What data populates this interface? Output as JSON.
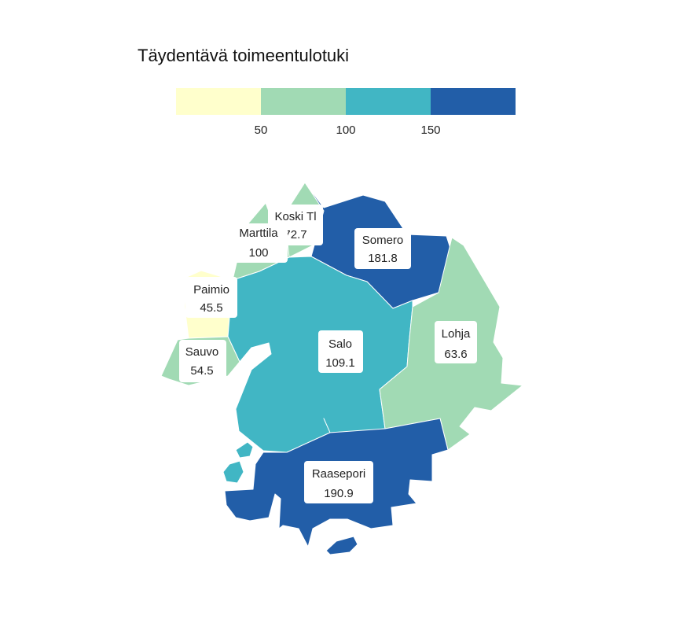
{
  "title": "Täydentävä toimeentulotuki",
  "legend": {
    "colors": [
      "#ffffcc",
      "#a1dab4",
      "#41b6c4",
      "#225ea8"
    ],
    "breaks": [
      50,
      100,
      150
    ],
    "tick_labels": [
      "50",
      "100",
      "150"
    ]
  },
  "municipalities": [
    {
      "name": "Koski Tl",
      "value_label": "72.7",
      "value": 72.7,
      "color": "#a1dab4"
    },
    {
      "name": "Marttila",
      "value_label": "100",
      "value": 100,
      "color": "#a1dab4"
    },
    {
      "name": "Somero",
      "value_label": "181.8",
      "value": 181.8,
      "color": "#225ea8"
    },
    {
      "name": "Paimio",
      "value_label": "45.5",
      "value": 45.5,
      "color": "#ffffcc"
    },
    {
      "name": "Salo",
      "value_label": "109.1",
      "value": 109.1,
      "color": "#41b6c4"
    },
    {
      "name": "Lohja",
      "value_label": "63.6",
      "value": 63.6,
      "color": "#a1dab4"
    },
    {
      "name": "Sauvo",
      "value_label": "54.5",
      "value": 54.5,
      "color": "#a1dab4"
    },
    {
      "name": "Raasepori",
      "value_label": "190.9",
      "value": 190.9,
      "color": "#225ea8"
    }
  ]
}
